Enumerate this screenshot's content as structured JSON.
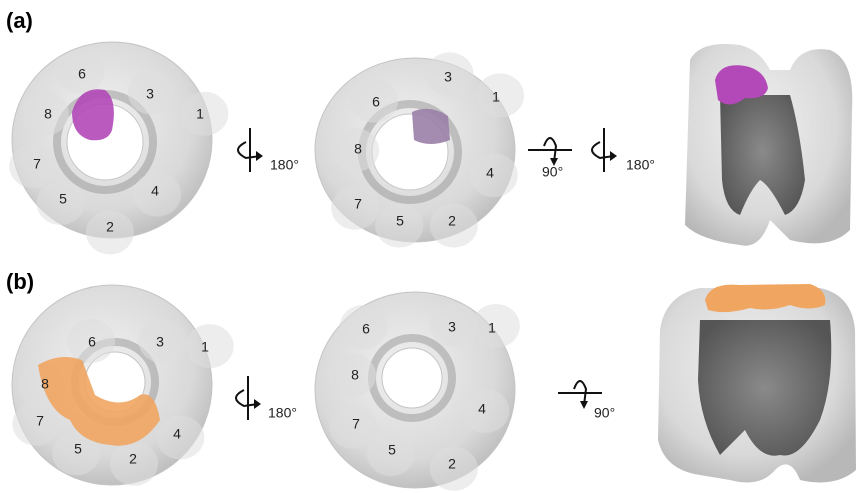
{
  "panels": [
    {
      "label": "(a)",
      "views": [
        {
          "subunits": [
            "6",
            "3",
            "1",
            "8",
            "7",
            "5",
            "2",
            "4"
          ]
        },
        {
          "subunits": [
            "3",
            "1",
            "6",
            "8",
            "4",
            "7",
            "5",
            "2"
          ]
        },
        {
          "subunits": []
        }
      ],
      "rotations": [
        [
          "180°"
        ],
        [
          "90°",
          "180°"
        ]
      ]
    },
    {
      "label": "(b)",
      "views": [
        {
          "subunits": [
            "6",
            "3",
            "1",
            "8",
            "7",
            "5",
            "2",
            "4"
          ]
        },
        {
          "subunits": [
            "6",
            "3",
            "1",
            "8",
            "4",
            "7",
            "5",
            "2"
          ]
        },
        {
          "subunits": []
        }
      ],
      "rotations": [
        [
          "180°"
        ],
        [
          "90°"
        ]
      ]
    }
  ]
}
